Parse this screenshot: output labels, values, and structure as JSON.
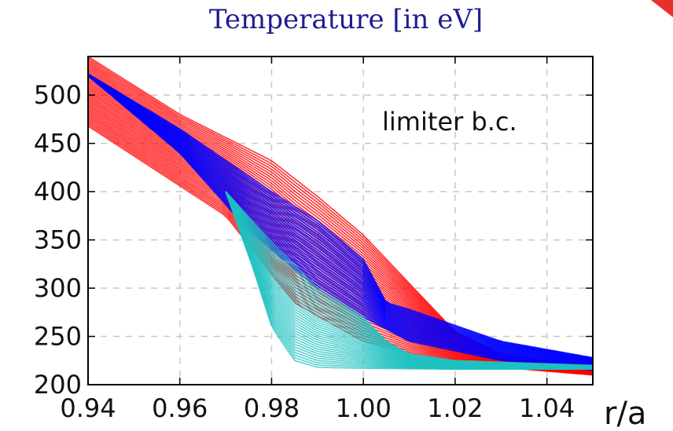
{
  "chart_data": {
    "type": "line",
    "title": "Temperature [in eV]",
    "xlabel": "r/a",
    "ylabel": "",
    "annotation": "limiter b.c.",
    "xlim": [
      0.94,
      1.05
    ],
    "ylim": [
      200,
      540
    ],
    "xticks": [
      0.94,
      0.96,
      0.98,
      1.0,
      1.02,
      1.04
    ],
    "xtick_labels": [
      "0.94",
      "0.96",
      "0.98",
      "1.00",
      "1.02",
      "1.04"
    ],
    "yticks": [
      200,
      250,
      300,
      350,
      400,
      450,
      500
    ],
    "ytick_labels": [
      "200",
      "250",
      "300",
      "350",
      "400",
      "450",
      "500"
    ],
    "grid": true,
    "series": [
      {
        "color": "#ff0000",
        "bands": [
          {
            "lower": {
              "x": [
                0.94,
                0.97,
                0.985,
                1.0,
                1.02,
                1.05
              ],
              "y": [
                468,
                375,
                285,
                245,
                222,
                210
              ]
            },
            "upper": {
              "x": [
                0.94,
                0.96,
                0.98,
                0.99,
                1.0,
                1.01,
                1.02,
                1.03,
                1.05
              ],
              "y": [
                540,
                480,
                432,
                395,
                355,
                305,
                255,
                232,
                218
              ]
            },
            "count": 40
          }
        ]
      },
      {
        "color": "#0000ff",
        "bands": [
          {
            "lower": {
              "x": [
                0.94,
                0.96,
                0.975,
                0.99,
                1.0,
                1.01,
                1.03,
                1.05
              ],
              "y": [
                520,
                440,
                360,
                300,
                270,
                245,
                225,
                215
              ]
            },
            "upper": {
              "x": [
                0.94,
                0.96,
                0.98,
                0.99,
                1.0,
                1.005,
                1.01,
                1.03,
                1.05
              ],
              "y": [
                522,
                465,
                400,
                370,
                330,
                285,
                278,
                245,
                228
              ]
            },
            "count": 30
          }
        ]
      },
      {
        "color": "#1fc0c0",
        "bands": [
          {
            "lower": {
              "x": [
                0.97,
                0.976,
                0.98,
                0.985,
                0.99,
                1.0,
                1.02,
                1.05
              ],
              "y": [
                400,
                320,
                260,
                225,
                218,
                217,
                216,
                216
              ]
            },
            "upper": {
              "x": [
                0.97,
                0.98,
                0.99,
                1.0,
                1.005,
                1.01,
                1.02,
                1.05
              ],
              "y": [
                400,
                348,
                300,
                270,
                245,
                232,
                225,
                220
              ]
            },
            "count": 35
          }
        ]
      }
    ]
  }
}
